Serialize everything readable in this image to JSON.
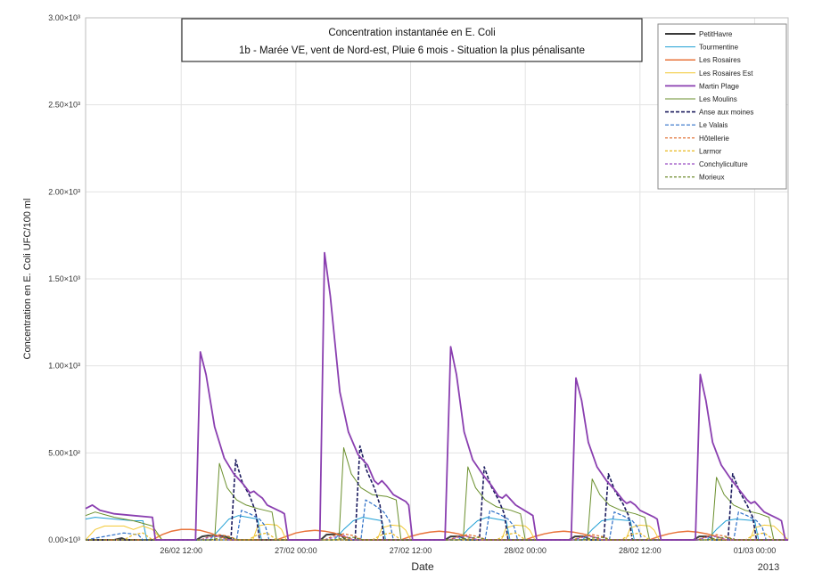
{
  "chart_data": {
    "type": "line",
    "title": "Concentration instantanée en E. Coli",
    "subtitle": "1b - Marée VE, vent de Nord-est, Pluie 6 mois - Situation la plus pénalisante",
    "xlabel": "Date",
    "ylabel": "Concentration en E. Coli UFC/100 ml",
    "year_label": "2013",
    "x_unit": "hours since 26/02 00:00",
    "xlim": [
      2,
      75.5
    ],
    "ylim": [
      0,
      3000
    ],
    "grid": true,
    "legend_position": "top-right",
    "y_ticks": [
      {
        "value": 0,
        "label": "0.00×10³"
      },
      {
        "value": 500,
        "label": "5.00×10²"
      },
      {
        "value": 1000,
        "label": "1.00×10³"
      },
      {
        "value": 1500,
        "label": "1.50×10³"
      },
      {
        "value": 2000,
        "label": "2.00×10³"
      },
      {
        "value": 2500,
        "label": "2.50×10³"
      },
      {
        "value": 3000,
        "label": "3.00×10³"
      }
    ],
    "x_ticks": [
      {
        "value": 12,
        "label": "26/02 12:00"
      },
      {
        "value": 24,
        "label": "27/02 00:00"
      },
      {
        "value": 36,
        "label": "27/02 12:00"
      },
      {
        "value": 48,
        "label": "28/02 00:00"
      },
      {
        "value": 60,
        "label": "28/02 12:00"
      },
      {
        "value": 72,
        "label": "01/03 00:00"
      }
    ],
    "series": [
      {
        "name": "PetitHavre",
        "color": "#3a3a3a",
        "dash": "",
        "width": 2,
        "x": [
          2,
          5,
          5.8,
          6.2,
          13.6,
          14.2,
          14.8,
          16.6,
          17.2,
          18.2,
          18.8,
          26.6,
          27.2,
          28.6,
          29.2,
          30.6,
          31.2,
          39.6,
          40.2,
          41.2,
          41.8,
          43.2,
          43.8,
          52.6,
          53.2,
          54.2,
          54.8,
          56.2,
          56.8,
          65.6,
          66.2,
          67.2,
          67.8,
          69.2,
          69.8,
          75.5
        ],
        "y": [
          0,
          0,
          10,
          0,
          0,
          20,
          25,
          22,
          0,
          0,
          0,
          0,
          30,
          35,
          0,
          0,
          0,
          0,
          20,
          20,
          0,
          0,
          0,
          0,
          20,
          20,
          0,
          0,
          0,
          0,
          20,
          20,
          0,
          0,
          0,
          0
        ]
      },
      {
        "name": "Tourmentine",
        "color": "#1f9fd5",
        "dash": "",
        "width": 1,
        "x": [
          2,
          3,
          5,
          7,
          8,
          8.4,
          15,
          16,
          17,
          18,
          19,
          20,
          20.4,
          28,
          29,
          30,
          31,
          32,
          33,
          33.4,
          41,
          42,
          43,
          44,
          45,
          46,
          46.4,
          54,
          55,
          56,
          57,
          58,
          59,
          59.4,
          67,
          68,
          69,
          70,
          71,
          72,
          72.4,
          75.5
        ],
        "y": [
          120,
          130,
          120,
          110,
          110,
          0,
          0,
          60,
          120,
          140,
          130,
          120,
          0,
          0,
          60,
          110,
          130,
          120,
          110,
          0,
          0,
          60,
          110,
          130,
          120,
          110,
          0,
          0,
          60,
          110,
          120,
          115,
          110,
          0,
          0,
          60,
          110,
          120,
          115,
          110,
          0,
          0
        ]
      },
      {
        "name": "Les Rosaires",
        "color": "#e8733a",
        "dash": "",
        "width": 1.5,
        "x": [
          2,
          9,
          10,
          11,
          12,
          13,
          14,
          15,
          16,
          17,
          22,
          23,
          24,
          25,
          26,
          27,
          28,
          29,
          30,
          35,
          36,
          37,
          38,
          39,
          40,
          41,
          42,
          43,
          48,
          49,
          50,
          51,
          52,
          53,
          54,
          55,
          56,
          61,
          62,
          63,
          64,
          65,
          66,
          67,
          68,
          69,
          75.5
        ],
        "y": [
          0,
          0,
          30,
          50,
          60,
          60,
          55,
          40,
          20,
          0,
          0,
          20,
          40,
          50,
          55,
          50,
          40,
          20,
          0,
          0,
          20,
          35,
          45,
          50,
          45,
          35,
          20,
          0,
          0,
          20,
          35,
          45,
          50,
          45,
          35,
          20,
          0,
          0,
          20,
          35,
          45,
          50,
          45,
          35,
          20,
          0,
          0
        ]
      },
      {
        "name": "Les Rosaires Est",
        "color": "#f2c832",
        "dash": "",
        "width": 1,
        "x": [
          2,
          3,
          4,
          6,
          7,
          8,
          9,
          10,
          19.5,
          20,
          21,
          22,
          22.5,
          23,
          26.5,
          32.5,
          33,
          34,
          35,
          35.5,
          36,
          39.5,
          45.5,
          46,
          47,
          48,
          48.5,
          49,
          52.5,
          58.5,
          59,
          60,
          61,
          61.5,
          62,
          65.5,
          71.5,
          72,
          73,
          74,
          74.5,
          75.5
        ],
        "y": [
          0,
          60,
          80,
          80,
          60,
          80,
          60,
          0,
          0,
          80,
          90,
          85,
          60,
          0,
          0,
          0,
          70,
          85,
          80,
          55,
          0,
          0,
          0,
          70,
          85,
          80,
          55,
          0,
          0,
          0,
          70,
          85,
          80,
          55,
          0,
          0,
          0,
          70,
          85,
          80,
          55,
          0
        ]
      },
      {
        "name": "Martin Plage",
        "color": "#8a3fb0",
        "dash": "",
        "width": 1.8,
        "x": [
          2,
          2.7,
          3.5,
          5,
          7,
          9,
          9.3,
          13.5,
          14,
          14.6,
          15.5,
          16.5,
          17.5,
          18.5,
          19.2,
          19.6,
          20,
          20.5,
          21,
          22.5,
          22.8,
          23.2,
          26.5,
          27,
          27.6,
          28.6,
          29.5,
          30.5,
          31.5,
          32.2,
          32.6,
          33,
          33.5,
          34.2,
          35.5,
          35.8,
          36.2,
          39.6,
          40.2,
          40.8,
          41.6,
          42.5,
          43.5,
          44.5,
          45.2,
          45.6,
          46,
          46.5,
          47,
          48.5,
          48.8,
          49.2,
          52.8,
          53.3,
          53.9,
          54.6,
          55.5,
          56.5,
          57.5,
          58.2,
          58.6,
          59,
          59.5,
          60,
          61.5,
          61.8,
          62.2,
          65.8,
          66.3,
          66.9,
          67.6,
          68.5,
          69.5,
          70.5,
          71.2,
          71.6,
          72,
          72.5,
          73,
          74.5,
          74.8,
          75.2,
          75.5
        ],
        "y": [
          180,
          200,
          170,
          150,
          140,
          130,
          0,
          0,
          1080,
          950,
          650,
          470,
          380,
          320,
          270,
          280,
          260,
          240,
          200,
          160,
          150,
          0,
          0,
          1650,
          1400,
          850,
          620,
          490,
          430,
          340,
          320,
          340,
          310,
          260,
          220,
          200,
          0,
          0,
          1110,
          950,
          620,
          460,
          380,
          310,
          250,
          240,
          260,
          230,
          200,
          150,
          140,
          0,
          0,
          930,
          800,
          560,
          420,
          340,
          280,
          230,
          210,
          220,
          200,
          170,
          130,
          120,
          0,
          0,
          950,
          800,
          560,
          430,
          350,
          280,
          230,
          210,
          220,
          190,
          160,
          120,
          110,
          0,
          0
        ]
      },
      {
        "name": "Les Moulins",
        "color": "#6a8f2c",
        "dash": "",
        "width": 1,
        "x": [
          2,
          3,
          5,
          7,
          9,
          10,
          15.5,
          16,
          16.8,
          17.8,
          18.8,
          20,
          21.5,
          22,
          28.5,
          29,
          29.8,
          30.8,
          32,
          33.5,
          34.5,
          35,
          41.5,
          42,
          42.8,
          43.8,
          45,
          46.5,
          47.5,
          48,
          54.5,
          55,
          55.8,
          56.8,
          58,
          59.5,
          60.5,
          61,
          67.5,
          68,
          68.8,
          69.8,
          71,
          72.5,
          73.5,
          74,
          75.5
        ],
        "y": [
          140,
          160,
          130,
          110,
          80,
          0,
          0,
          440,
          300,
          230,
          200,
          180,
          160,
          0,
          0,
          530,
          380,
          300,
          260,
          250,
          230,
          0,
          0,
          420,
          300,
          230,
          190,
          170,
          150,
          0,
          0,
          350,
          260,
          200,
          170,
          150,
          130,
          0,
          0,
          360,
          260,
          200,
          170,
          150,
          130,
          0,
          0
        ]
      },
      {
        "name": "Anse aux moines",
        "color": "#1b1b5e",
        "dash": "4,2",
        "width": 1.6,
        "x": [
          2,
          17.2,
          17.7,
          18.4,
          19.2,
          19.8,
          20.2,
          30.2,
          30.7,
          31.4,
          32.2,
          32.8,
          33.2,
          43.2,
          43.7,
          44.4,
          45.2,
          45.8,
          46.2,
          56.2,
          56.7,
          57.4,
          58.2,
          58.8,
          59.2,
          69.2,
          69.7,
          70.4,
          71.2,
          71.8,
          72.2,
          75.5
        ],
        "y": [
          0,
          0,
          460,
          330,
          250,
          160,
          0,
          0,
          540,
          400,
          300,
          200,
          0,
          0,
          420,
          310,
          230,
          150,
          0,
          0,
          380,
          280,
          210,
          140,
          0,
          0,
          380,
          280,
          200,
          130,
          0,
          0
        ]
      },
      {
        "name": "Le Valais",
        "color": "#2d6fc7",
        "dash": "4,2",
        "width": 1.2,
        "x": [
          2,
          4,
          6,
          7.5,
          8,
          17.8,
          18.3,
          19.2,
          20.2,
          20.8,
          21.2,
          30.8,
          31.3,
          32.2,
          33.2,
          33.8,
          34.2,
          43.8,
          44.3,
          45.2,
          46.2,
          46.8,
          47.2,
          56.8,
          57.3,
          58.2,
          59.2,
          59.8,
          60.2,
          69.8,
          70.3,
          71.2,
          72.2,
          72.8,
          73.2,
          75.5
        ],
        "y": [
          0,
          20,
          40,
          30,
          0,
          0,
          170,
          150,
          120,
          80,
          0,
          0,
          230,
          200,
          160,
          110,
          0,
          0,
          170,
          150,
          120,
          80,
          0,
          0,
          160,
          140,
          110,
          70,
          0,
          0,
          160,
          140,
          110,
          70,
          0,
          0
        ]
      },
      {
        "name": "Hôtellerie",
        "color": "#e06a2a",
        "dash": "3,2",
        "width": 1.2,
        "x": [
          2,
          14,
          15,
          16,
          17,
          18,
          27,
          28,
          29,
          30,
          31,
          40,
          41,
          42,
          43,
          44,
          53,
          54,
          55,
          56,
          57,
          66,
          67,
          68,
          69,
          70,
          75.5
        ],
        "y": [
          0,
          0,
          20,
          30,
          20,
          0,
          0,
          25,
          35,
          25,
          0,
          0,
          20,
          30,
          20,
          0,
          0,
          20,
          30,
          20,
          0,
          0,
          20,
          30,
          20,
          0,
          0
        ]
      },
      {
        "name": "Larmor",
        "color": "#e8b820",
        "dash": "3,2",
        "width": 1.2,
        "x": [
          2,
          6,
          7,
          8,
          9,
          19,
          20,
          21,
          22,
          32,
          33,
          34,
          35,
          45,
          46,
          47,
          48,
          58,
          59,
          60,
          61,
          71,
          72,
          73,
          74,
          75.5
        ],
        "y": [
          0,
          0,
          30,
          40,
          0,
          0,
          30,
          40,
          0,
          0,
          30,
          40,
          0,
          0,
          30,
          40,
          0,
          0,
          30,
          40,
          0,
          0,
          30,
          40,
          0,
          0
        ]
      },
      {
        "name": "Conchyliculture",
        "color": "#9b4fc4",
        "dash": "3,2",
        "width": 1.2,
        "x": [
          2,
          14,
          15,
          16,
          17,
          27,
          28,
          29,
          30,
          40,
          41,
          42,
          43,
          53,
          54,
          55,
          56,
          66,
          67,
          68,
          69,
          75.5
        ],
        "y": [
          0,
          0,
          15,
          20,
          0,
          0,
          15,
          25,
          0,
          0,
          15,
          20,
          0,
          0,
          15,
          20,
          0,
          0,
          15,
          20,
          0,
          0
        ]
      },
      {
        "name": "Morieux",
        "color": "#6d8a2a",
        "dash": "3,2",
        "width": 1.2,
        "x": [
          2,
          15,
          16,
          17,
          18,
          28,
          29,
          30,
          31,
          41,
          42,
          43,
          44,
          54,
          55,
          56,
          57,
          67,
          68,
          69,
          70,
          75.5
        ],
        "y": [
          0,
          0,
          10,
          15,
          0,
          0,
          10,
          15,
          0,
          0,
          10,
          15,
          0,
          0,
          10,
          15,
          0,
          0,
          10,
          15,
          0,
          0
        ]
      }
    ]
  }
}
